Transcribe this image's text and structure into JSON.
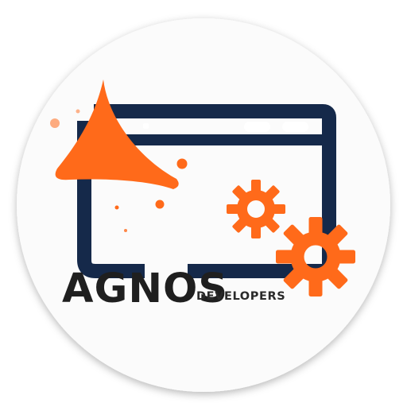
{
  "logo": {
    "brand_name": "AGNOS",
    "tagline": "DEVELOPERS",
    "colors": {
      "accent": "#ff6a1a",
      "window_frame": "#15294a",
      "text": "#1f1f1f",
      "background_circle": "#fbfbfb"
    },
    "icons": [
      "browser-window-icon",
      "gear-icon",
      "gear-icon"
    ]
  }
}
